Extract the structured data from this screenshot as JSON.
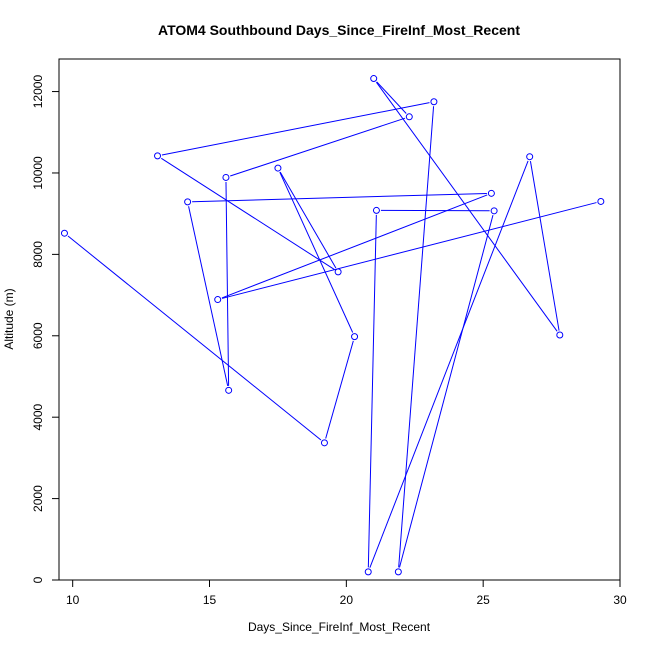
{
  "chart_data": {
    "type": "line",
    "title": "ATOM4 Southbound Days_Since_FireInf_Most_Recent",
    "xlabel": "Days_Since_FireInf_Most_Recent",
    "ylabel": "Altitude (m)",
    "xlim": [
      9.5,
      30.0
    ],
    "ylim": [
      0,
      12800
    ],
    "xticks": [
      10,
      15,
      20,
      25,
      30
    ],
    "yticks": [
      0,
      2000,
      4000,
      6000,
      8000,
      10000,
      12000
    ],
    "series_color": "#0000ff",
    "x": [
      9.7,
      19.2,
      20.3,
      17.5,
      19.7,
      13.1,
      23.2,
      21.9,
      25.4,
      21.1,
      20.8,
      26.7,
      27.8,
      21.0,
      22.3,
      15.6,
      15.7,
      14.2,
      25.3,
      15.3,
      29.3
    ],
    "y": [
      8520,
      3370,
      5980,
      10120,
      7570,
      10420,
      11750,
      200,
      9070,
      9080,
      200,
      10400,
      6020,
      12320,
      11380,
      9890,
      4660,
      9290,
      9500,
      6890,
      9300
    ]
  }
}
